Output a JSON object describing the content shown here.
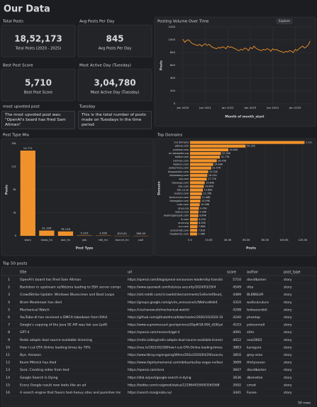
{
  "header": {
    "title": "Our Data"
  },
  "cards": [
    {
      "label": "Total Posts",
      "value": "18,52,173",
      "caption": "Total Posts (2020 - 2025)"
    },
    {
      "label": "Avg Posts Per Day",
      "value": "845",
      "caption": "Avg Posts Per Day"
    },
    {
      "label": "Best Post Score",
      "value": "5,710",
      "caption": "Best Post Score"
    },
    {
      "label": "Most Active Day (Tuesday)",
      "value": "3,04,780",
      "caption": "Most Active Day (Tuesday)"
    }
  ],
  "notes": [
    {
      "label": "most upvoted post",
      "text": "The most upvoted post was: \"OpenAI's board has fired Sam Altman\""
    },
    {
      "label": "Tuesday",
      "text": "This is the total number of posts made on Tuesdays in the time period"
    }
  ],
  "chart_data": [
    {
      "type": "line",
      "title": "Posting Volume Over Time",
      "button": "Explore",
      "x_label": "Month of month_start",
      "y_label": "Posts",
      "color": "#f0922b",
      "grid": true,
      "x": [
        "2020-01",
        "2020-02",
        "2020-03",
        "2020-04",
        "2020-05",
        "2020-06",
        "2020-07",
        "2020-08",
        "2020-09",
        "2020-10",
        "2020-11",
        "2020-12",
        "2021-01",
        "2021-02",
        "2021-03",
        "2021-04",
        "2021-05",
        "2021-06",
        "2021-07",
        "2021-08",
        "2021-09",
        "2021-10",
        "2021-11",
        "2021-12",
        "2022-01",
        "2022-02",
        "2022-03",
        "2022-04",
        "2022-05",
        "2022-06",
        "2022-07",
        "2022-08",
        "2022-09",
        "2022-10",
        "2022-11",
        "2022-12",
        "2023-01",
        "2023-02",
        "2023-03",
        "2023-04",
        "2023-05",
        "2023-06",
        "2023-07",
        "2023-08",
        "2023-09",
        "2023-10",
        "2023-11",
        "2023-12",
        "2024-01",
        "2024-02",
        "2024-03",
        "2024-04",
        "2024-05",
        "2024-06",
        "2024-07",
        "2024-08",
        "2024-09",
        "2024-10",
        "2024-11",
        "2024-12",
        "2025-01",
        "2025-02",
        "2025-03",
        "2025-04",
        "2025-05",
        "2025-06",
        "2025-07",
        "2025-08",
        "2025-09"
      ],
      "values": [
        1010,
        960,
        990,
        1000,
        970,
        940,
        930,
        920,
        910,
        930,
        900,
        920,
        940,
        910,
        930,
        900,
        880,
        870,
        860,
        880,
        870,
        890,
        880,
        860,
        900,
        880,
        890,
        870,
        860,
        840,
        830,
        850,
        840,
        870,
        860,
        830,
        880,
        860,
        900,
        870,
        850,
        840,
        830,
        850,
        840,
        860,
        850,
        820,
        860,
        840,
        850,
        830,
        820,
        810,
        800,
        820,
        810,
        830,
        820,
        800,
        850,
        830,
        860,
        880,
        900,
        870,
        890,
        920,
        980
      ],
      "xlim": [
        "2019-10",
        "2025-10"
      ],
      "xticks": [
        {
          "value": "2020-01",
          "label": "Jan 2020"
        },
        {
          "value": "2021-01",
          "label": "Jan 2021"
        },
        {
          "value": "2022-01",
          "label": "Jan 2022"
        },
        {
          "value": "2023-01",
          "label": "Jan 2023"
        },
        {
          "value": "2024-01",
          "label": "Jan 2024"
        },
        {
          "value": "2025-01",
          "label": "Jan 2025"
        }
      ],
      "ylim": [
        0,
        1200
      ],
      "yticks": [
        0,
        200,
        400,
        600,
        800,
        1000,
        1200
      ]
    },
    {
      "type": "bar",
      "title": "Post Type Mix",
      "x_label": "Post Type",
      "y_label": "Posts",
      "color": "#f0922b",
      "grid": true,
      "categories": [
        "story",
        "show_hn",
        "ask_hn",
        "job",
        "tell_hn",
        "launch_hn",
        "poll"
      ],
      "values": [
        1477000,
        91320,
        76120,
        5310,
        3930,
        819,
        360
      ],
      "value_labels": [
        "14.77L",
        "91.32K",
        "76.12K",
        "5.31K",
        "3.93K",
        "819.00",
        "360.00"
      ],
      "ylim": [
        0,
        1600000
      ],
      "yticks": [
        0,
        {
          "value": 400000,
          "label": "4L"
        },
        {
          "value": 800000,
          "label": "8L"
        },
        {
          "value": 1200000,
          "label": "12L"
        },
        {
          "value": 1600000,
          "label": "16L"
        }
      ]
    },
    {
      "type": "hbar",
      "title": "Top Domains",
      "x_label": "Posts",
      "y_label": "Domain",
      "color": "#f0922b",
      "grid": true,
      "categories": [
        "(no domain)",
        "github.com",
        "youtube.com",
        "en.wikipedia.org",
        "twitter.com",
        "nytimes.com",
        "medium.com",
        "arstechnica.com",
        "theguardian.com",
        "bloomberg.com",
        "wsj.com",
        "theverge.com",
        "bbc.com",
        "bbc.co.uk",
        "reuters.com",
        "techcrunch.com",
        "theregister.com",
        "cnbc.com",
        "phys.org",
        "nature.com",
        "washingtonpost.com",
        "ft.com",
        "arxiv.org",
        "cnn.com",
        "economist.com",
        "theatlantic.com"
      ],
      "values": [
        122000,
        59134,
        40839,
        32900,
        31770,
        28450,
        24690,
        22570,
        19320,
        18410,
        17710,
        15600,
        14640,
        13690,
        12700,
        11480,
        10990,
        10280,
        9450,
        9000,
        8840,
        8210,
        8050,
        7860,
        7610,
        7460
      ],
      "value_labels": [
        "1.22L",
        "59.13K",
        "40.84K",
        "32.90K",
        "31.77K",
        "28.45K",
        "24.69K",
        "22.57K",
        "19.32K",
        "18.41K",
        "17.71K",
        "15.60K",
        "14.64K",
        "13.69K",
        "12.70K",
        "11.48K",
        "10.99K",
        "10.28K",
        "9.45K",
        "9.00K",
        "8.84K",
        "8.21K",
        "8.05K",
        "7.86K",
        "7.61K",
        "7.46K"
      ],
      "xlim": [
        0,
        130000
      ],
      "xticks": [
        {
          "value": 0,
          "label": "0.0"
        },
        {
          "value": 20000,
          "label": "20.0K"
        },
        {
          "value": 40000,
          "label": "40.0K"
        },
        {
          "value": 60000,
          "label": "60.0K"
        },
        {
          "value": 80000,
          "label": "80.0K"
        },
        {
          "value": 100000,
          "label": "100.0K"
        },
        {
          "value": 120000,
          "label": "120.0K"
        }
      ]
    }
  ],
  "table": {
    "title": "Top 50 posts",
    "columns": [
      "title",
      "url",
      "score",
      "author",
      "post_type"
    ],
    "rows": [
      [
        1,
        "OpenAI's board has fired Sam Altman",
        "https://openai.com/blog/openai-announces-leadership-transition",
        5710,
        "davidbarker",
        "story"
      ],
      [
        2,
        "Backdoor in upstream xz/liblzma leading to SSH server compromise",
        "https://www.openwall.com/lists/oss-security/2024/03/29/4",
        4549,
        "rkta",
        "story"
      ],
      [
        3,
        "CrowdStrike Update: Windows Bluescreen and Boot Loops",
        "https://old.reddit.com/r/crowdstrike/comments/1e6vmkf/bsod_error_in_...",
        4489,
        "BLKNSLVR",
        "story"
      ],
      [
        4,
        "Bram Moolenaar has died",
        "https://groups.google.com/g/vim_announce/c/tWahca9zkt4",
        4310,
        "wufocaculura",
        "story"
      ],
      [
        5,
        "Mechanical Watch",
        "https://ciechanow.ski/mechanical-watch/",
        4298,
        "todsacerdoti",
        "story"
      ],
      [
        6,
        "YouTube-dl has received a DMCA takedown from RIAA",
        "https://github.com/github/dmca/blob/master/2020/10/2020-10-23-RIA...",
        4240,
        "phantop",
        "story"
      ],
      [
        7,
        "Google's copying of the Java SE API was fair use [pdf]",
        "https://www.supremecourt.gov/opinions/20pdf/18-956_d18f.pdf",
        4103,
        "pdoconnell",
        "story"
      ],
      [
        8,
        "GPT-4",
        "https://openai.com/research/gpt-4",
        4091,
        "e0m",
        "story"
      ],
      [
        9,
        "Redis adopts dual source-available licensing",
        "https://redis.io/blog/redis-adopts-dual-source-available-licensing/",
        4022,
        "neal3602",
        "story"
      ],
      [
        10,
        "How I cut GTA Online loading times by 70%",
        "https://nee.lv/2021/02/28/How-I-cut-GTA-Online-loading-times-by-70/",
        3883,
        "kuroguro",
        "story"
      ],
      [
        11,
        "Bye, Amazon",
        "https://www.tbray.org/ongoing/When/202x/2020/04/29/Leaving-Amazon",
        3816,
        "grey-area",
        "story"
      ],
      [
        12,
        "Kevin Mitnick has died",
        "https://www.dignitymemorial.com/obituaries/las-vegas-nv/kevin-mitnick...",
        3699,
        "thirtyseven",
        "story"
      ],
      [
        13,
        "Sora: Creating video from text",
        "https://openai.com/sora",
        3647,
        "davidbarker",
        "story"
      ],
      [
        14,
        "Google Search Is Dying",
        "https://dkb.io/post/google-search-is-dying",
        3636,
        "dbrereton",
        "story"
      ],
      [
        15,
        "Every Google result now looks like an ad",
        "https://twitter.com/craigmod/status/1219644556003565568",
        3592,
        "cmod",
        "story"
      ],
      [
        16,
        "A search engine that favors text-heavy sites and punishes modern web d...",
        "https://search.marginalia.nu/",
        3441,
        "Funes-",
        "story"
      ]
    ],
    "footer": "50 rows"
  }
}
